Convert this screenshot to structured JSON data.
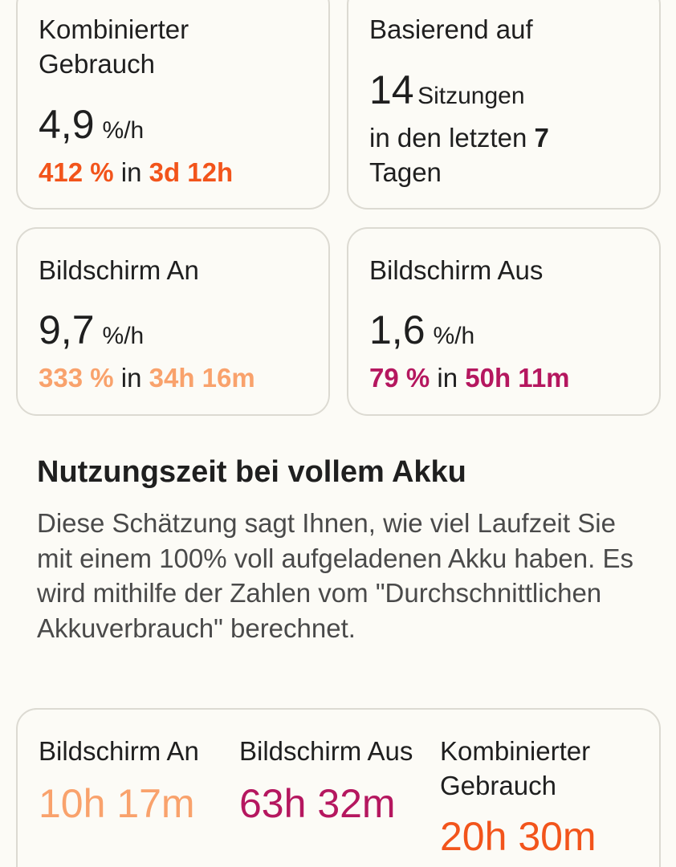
{
  "colors": {
    "combined": "#f2541b",
    "screen_on": "#f9a26c",
    "screen_off": "#b5175f",
    "card_border": "#dcdad2",
    "background": "#fcfbf6"
  },
  "cards": {
    "combined": {
      "label_line1": "Kombinierter",
      "label_line2": "Gebrauch",
      "rate": "4,9",
      "unit": "%/h",
      "percent": "412 %",
      "in_word": "in",
      "duration": "3d 12h"
    },
    "based_on": {
      "label": "Basierend auf",
      "sessions_count": "14",
      "sessions_word": "Sitzungen",
      "period_prefix": "in den letzten",
      "period_days": "7",
      "period_suffix": "Tagen"
    },
    "screen_on": {
      "label": "Bildschirm An",
      "rate": "9,7",
      "unit": "%/h",
      "percent": "333 %",
      "in_word": "in",
      "duration": "34h 16m"
    },
    "screen_off": {
      "label": "Bildschirm Aus",
      "rate": "1,6",
      "unit": "%/h",
      "percent": "79 %",
      "in_word": "in",
      "duration": "50h 11m"
    }
  },
  "section": {
    "title": "Nutzungszeit bei vollem Akku",
    "description": "Diese Schätzung sagt Ihnen, wie viel Laufzeit Sie mit einem 100% voll aufgeladenen Akku haben. Es wird mithilfe der Zahlen vom \"Durchschnittlichen Akkuverbrauch\" berechnet."
  },
  "full_charge": {
    "screen_on": {
      "label": "Bildschirm An",
      "value": "10h 17m"
    },
    "screen_off": {
      "label": "Bildschirm Aus",
      "value": "63h 32m"
    },
    "combined": {
      "label_line1": "Kombinierter",
      "label_line2": "Gebrauch",
      "value": "20h 30m"
    }
  }
}
